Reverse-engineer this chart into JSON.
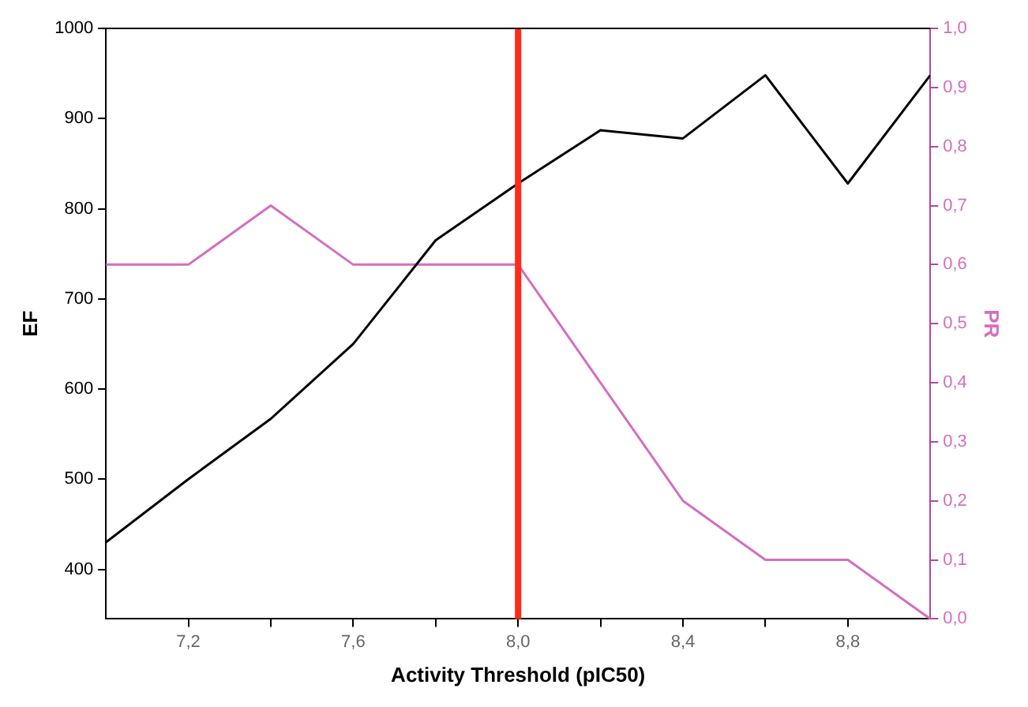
{
  "chart_data": {
    "type": "line",
    "xlabel": "Activity Threshold (pIC50)",
    "ylabel": "EF",
    "y2label": "PR",
    "x": [
      7.0,
      7.2,
      7.4,
      7.6,
      7.8,
      8.0,
      8.2,
      8.4,
      8.6,
      8.8,
      9.0
    ],
    "series": [
      {
        "color": "#000000",
        "values": [
          430,
          500,
          567,
          650,
          765,
          828,
          887,
          878,
          948,
          828,
          948
        ]
      },
      {
        "color": "#d36fc0",
        "axis": "y2",
        "values": [
          0.6,
          0.6,
          0.7,
          0.6,
          0.6,
          0.6,
          0.4,
          0.2,
          0.1,
          0.1,
          0.0
        ]
      }
    ],
    "xlim": [
      7.0,
      9.0
    ],
    "xticks": [
      {
        "value": 7.2,
        "label": "7,2"
      },
      {
        "value": 7.4,
        "label": null
      },
      {
        "value": 7.6,
        "label": "7,6"
      },
      {
        "value": 7.8,
        "label": null
      },
      {
        "value": 8.0,
        "label": "8,0"
      },
      {
        "value": 8.2,
        "label": null
      },
      {
        "value": 8.4,
        "label": "8,4"
      },
      {
        "value": 8.6,
        "label": null
      },
      {
        "value": 8.8,
        "label": "8,8"
      }
    ],
    "ylim": [
      345,
      1000
    ],
    "yticks": [
      400,
      500,
      600,
      700,
      800,
      900,
      1000
    ],
    "y2lim": [
      0,
      1
    ],
    "y2ticks": [
      {
        "value": 0,
        "label": "0,0"
      },
      {
        "value": 0.1,
        "label": "0,1"
      },
      {
        "value": 0.2,
        "label": "0,2"
      },
      {
        "value": 0.3,
        "label": "0,3"
      },
      {
        "value": 0.4,
        "label": "0,4"
      },
      {
        "value": 0.5,
        "label": "0,5"
      },
      {
        "value": 0.6,
        "label": "0,6"
      },
      {
        "value": 0.7,
        "label": "0,7"
      },
      {
        "value": 0.8,
        "label": "0,8"
      },
      {
        "value": 0.9,
        "label": "0,9"
      },
      {
        "value": 1,
        "label": "1,0"
      }
    ],
    "ref_lines": [
      {
        "axis": "x",
        "value": 8.0,
        "color": "#ff2a1a"
      }
    ],
    "marker": "none",
    "line_style": "solid",
    "legend": false
  }
}
